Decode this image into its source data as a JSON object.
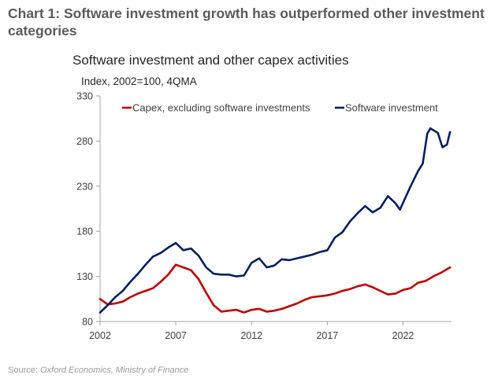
{
  "heading": "Chart 1: Software investment growth has outperformed other investment categories",
  "source": {
    "prefix": "Source: ",
    "text": "Oxford Economics, Ministry of Finance"
  },
  "chart_data": {
    "type": "line",
    "title": "Software investment and other capex activities",
    "subtitle": "Index, 2002=100, 4QMA",
    "xlabel": "",
    "ylabel": "Index, 2002=100, 4QMA",
    "xlim": [
      2002,
      2025.2
    ],
    "ylim": [
      80,
      330
    ],
    "xticks": [
      2002,
      2007,
      2012,
      2017,
      2022
    ],
    "xtick_labels": [
      "2002",
      "2007",
      "2012",
      "2017",
      "2022"
    ],
    "yticks": [
      80,
      130,
      180,
      230,
      280,
      330
    ],
    "ytick_labels": [
      "80",
      "130",
      "180",
      "230",
      "280",
      "330"
    ],
    "grid": false,
    "legend_position": "top",
    "colors": {
      "capex": "#c00000",
      "software": "#002060",
      "axis": "#a6a6a6"
    },
    "series": [
      {
        "name": "Capex, excluding software investments",
        "color": "#c00000",
        "x": [
          2002.0,
          2002.5,
          2003.0,
          2003.5,
          2004.0,
          2004.5,
          2005.0,
          2005.5,
          2006.0,
          2006.5,
          2007.0,
          2007.5,
          2008.0,
          2008.5,
          2009.0,
          2009.5,
          2010.0,
          2010.5,
          2011.0,
          2011.5,
          2012.0,
          2012.5,
          2013.0,
          2013.5,
          2014.0,
          2014.5,
          2015.0,
          2015.5,
          2016.0,
          2016.5,
          2017.0,
          2017.5,
          2018.0,
          2018.5,
          2019.0,
          2019.5,
          2020.0,
          2020.5,
          2021.0,
          2021.5,
          2022.0,
          2022.5,
          2023.0,
          2023.5,
          2024.0,
          2024.5,
          2025.1
        ],
        "values": [
          105,
          99,
          100,
          102,
          107,
          111,
          114,
          117,
          124,
          132,
          143,
          140,
          137,
          127,
          112,
          98,
          91,
          92,
          93,
          90,
          93,
          94,
          91,
          92,
          94,
          97,
          100,
          104,
          107,
          108,
          109,
          111,
          114,
          116,
          119,
          121,
          118,
          114,
          110,
          111,
          115,
          117,
          123,
          125,
          130,
          134,
          140
        ]
      },
      {
        "name": "Software investment",
        "color": "#002060",
        "x": [
          2002.0,
          2002.5,
          2003.0,
          2003.5,
          2004.0,
          2004.5,
          2005.0,
          2005.5,
          2006.0,
          2006.5,
          2007.0,
          2007.5,
          2008.0,
          2008.5,
          2009.0,
          2009.5,
          2010.0,
          2010.5,
          2011.0,
          2011.5,
          2012.0,
          2012.5,
          2013.0,
          2013.5,
          2014.0,
          2014.5,
          2015.0,
          2015.5,
          2016.0,
          2016.5,
          2017.0,
          2017.5,
          2018.0,
          2018.5,
          2019.0,
          2019.5,
          2020.0,
          2020.5,
          2021.0,
          2021.5,
          2021.8,
          2022.5,
          2023.0,
          2023.3,
          2023.6,
          2023.8,
          2024.3,
          2024.6,
          2024.9,
          2025.1
        ],
        "values": [
          90,
          98,
          107,
          114,
          124,
          133,
          143,
          152,
          156,
          162,
          167,
          159,
          161,
          153,
          140,
          133,
          132,
          132,
          130,
          131,
          145,
          150,
          140,
          142,
          149,
          148,
          150,
          152,
          154,
          157,
          159,
          173,
          179,
          191,
          200,
          208,
          201,
          206,
          219,
          211,
          204,
          230,
          247,
          255,
          288,
          294,
          289,
          273,
          276,
          290
        ]
      }
    ]
  }
}
